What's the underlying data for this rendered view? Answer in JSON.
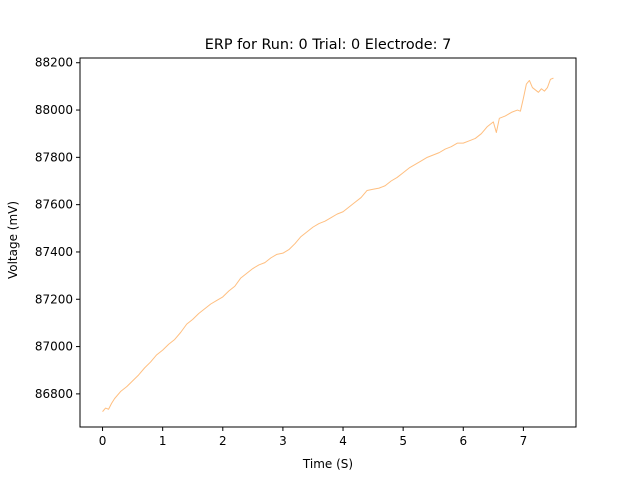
{
  "chart_data": {
    "type": "line",
    "title": "ERP for Run: 0 Trial: 0 Electrode: 7",
    "xlabel": "Time (S)",
    "ylabel": "Voltage (mV)",
    "xlim": [
      -0.375,
      7.875
    ],
    "ylim": [
      86660,
      88220
    ],
    "xticks": [
      0,
      1,
      2,
      3,
      4,
      5,
      6,
      7
    ],
    "yticks": [
      86800,
      87000,
      87200,
      87400,
      87600,
      87800,
      88000,
      88200
    ],
    "grid": false,
    "series": [
      {
        "color": "#ffbf80",
        "x": [
          0,
          0.05,
          0.1,
          0.15,
          0.2,
          0.3,
          0.4,
          0.5,
          0.6,
          0.7,
          0.8,
          0.9,
          1.0,
          1.1,
          1.2,
          1.3,
          1.4,
          1.5,
          1.6,
          1.7,
          1.8,
          1.9,
          2.0,
          2.1,
          2.2,
          2.3,
          2.4,
          2.5,
          2.6,
          2.7,
          2.8,
          2.9,
          3.0,
          3.1,
          3.2,
          3.3,
          3.4,
          3.5,
          3.6,
          3.7,
          3.8,
          3.9,
          4.0,
          4.1,
          4.2,
          4.3,
          4.4,
          4.5,
          4.6,
          4.7,
          4.8,
          4.9,
          5.0,
          5.1,
          5.2,
          5.3,
          5.4,
          5.5,
          5.6,
          5.7,
          5.8,
          5.9,
          6.0,
          6.1,
          6.2,
          6.3,
          6.4,
          6.5,
          6.55,
          6.6,
          6.7,
          6.8,
          6.9,
          6.95,
          7.0,
          7.05,
          7.1,
          7.15,
          7.2,
          7.25,
          7.3,
          7.35,
          7.4,
          7.45,
          7.5
        ],
        "y": [
          86725,
          86740,
          86735,
          86760,
          86780,
          86810,
          86830,
          86855,
          86880,
          86910,
          86935,
          86965,
          86985,
          87010,
          87030,
          87060,
          87095,
          87115,
          87140,
          87160,
          87180,
          87195,
          87210,
          87235,
          87255,
          87290,
          87310,
          87330,
          87345,
          87355,
          87375,
          87390,
          87395,
          87410,
          87435,
          87465,
          87485,
          87505,
          87520,
          87530,
          87545,
          87560,
          87570,
          87590,
          87610,
          87630,
          87660,
          87665,
          87670,
          87680,
          87700,
          87715,
          87735,
          87755,
          87770,
          87785,
          87800,
          87810,
          87820,
          87835,
          87845,
          87860,
          87860,
          87870,
          87880,
          87900,
          87930,
          87950,
          87905,
          87965,
          87975,
          87990,
          88000,
          87995,
          88050,
          88110,
          88125,
          88095,
          88085,
          88075,
          88090,
          88080,
          88095,
          88130,
          88135
        ]
      }
    ]
  }
}
